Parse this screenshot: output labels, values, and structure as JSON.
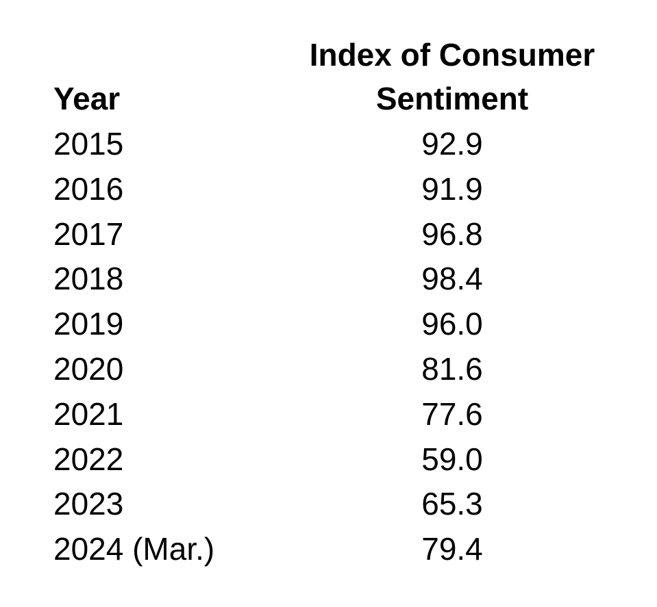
{
  "table": {
    "header": [
      "Year",
      "Index of Consumer Sentiment"
    ],
    "rows": [
      [
        "2015",
        "92.9"
      ],
      [
        "2016",
        "91.9"
      ],
      [
        "2017",
        "96.8"
      ],
      [
        "2018",
        "98.4"
      ],
      [
        "2019",
        "96.0"
      ],
      [
        "2020",
        "81.6"
      ],
      [
        "2021",
        "77.6"
      ],
      [
        "2022",
        "59.0"
      ],
      [
        "2023",
        "65.3"
      ],
      [
        "2024 (Mar.)",
        "79.4"
      ]
    ]
  }
}
